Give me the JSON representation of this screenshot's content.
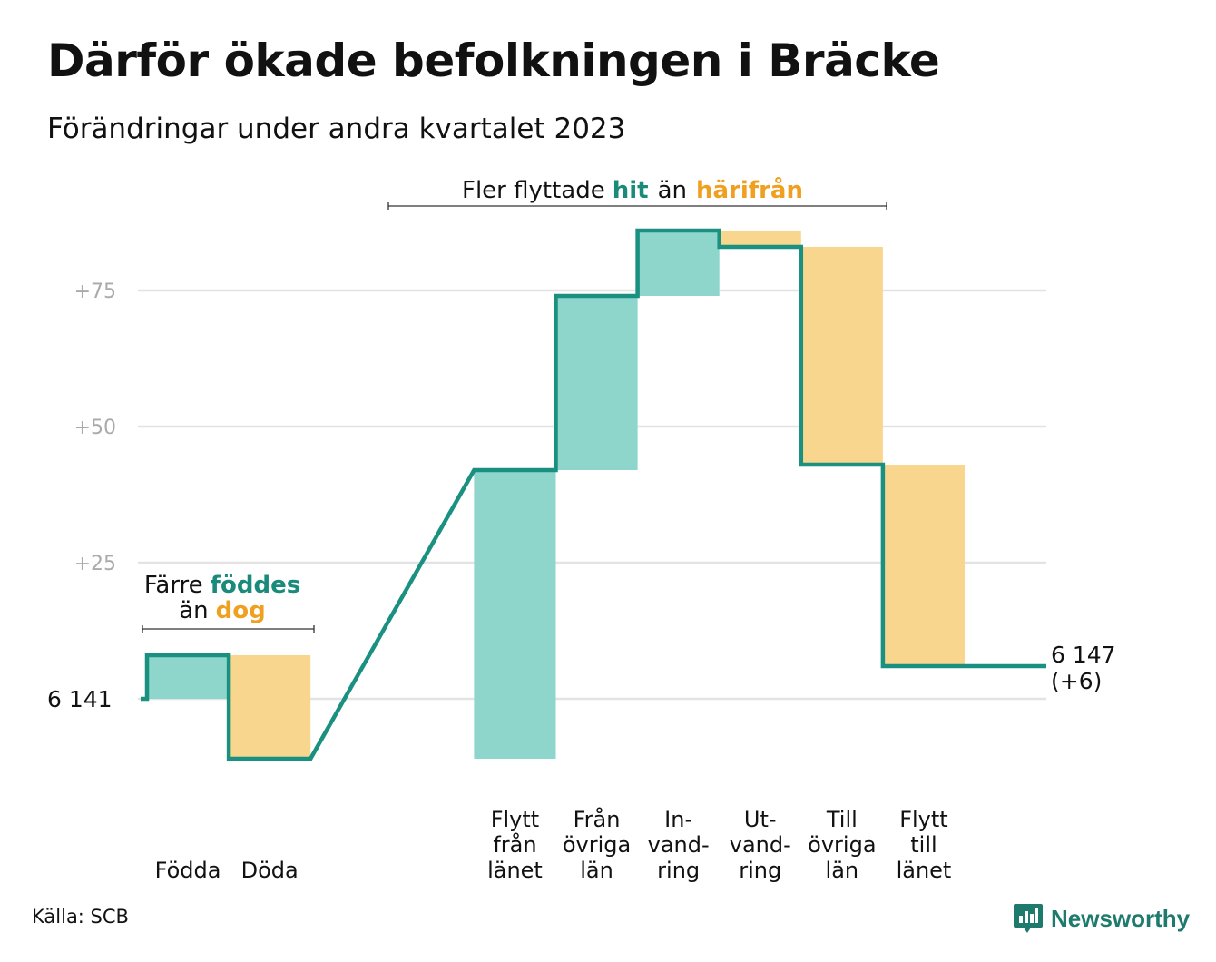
{
  "title": "Därför ökade befolkningen i Bräcke",
  "subtitle": "Förändringar under andra kvartalet 2023",
  "source": "Källa: SCB",
  "logo": {
    "text": "Newsworthy",
    "icon": "newsworthy-chart-bubble-icon"
  },
  "annotations": {
    "births_deaths": {
      "line1_plain": "Färre",
      "line1_highlight": "föddes",
      "line2_plain": "än",
      "line2_highlight": "dog"
    },
    "migration": {
      "plain1": "Fler flyttade",
      "highlight1": "hit",
      "plain2": "än",
      "highlight2": "härifrån"
    }
  },
  "colors": {
    "increase_fill": "#8ed5cc",
    "decrease_fill": "#f9d68e",
    "step_line": "#1a9080",
    "teal_text": "#1a8b7b",
    "orange_text": "#f0a020",
    "grid": "#e3e3e3",
    "tick_label": "#aaaaaa"
  },
  "chart_data": {
    "type": "waterfall",
    "title": "Därför ökade befolkningen i Bräcke",
    "subtitle": "Förändringar under andra kvartalet 2023",
    "start_value": 6141,
    "start_label": "6  141",
    "end_value": 6147,
    "end_label_line1": "6 147",
    "end_label_line2": "(+6)",
    "y_ticks": [
      {
        "offset": 25,
        "label": "+25"
      },
      {
        "offset": 50,
        "label": "+50"
      },
      {
        "offset": 75,
        "label": "+75"
      }
    ],
    "ylim_offset": [
      -14,
      90
    ],
    "grid": true,
    "steps": [
      {
        "label_lines": [
          "Födda"
        ],
        "change": 8
      },
      {
        "label_lines": [
          "Döda"
        ],
        "change": -19
      },
      {
        "label_lines": [
          "Flytt",
          "från",
          "länet"
        ],
        "change": 53
      },
      {
        "label_lines": [
          "Från",
          "övriga",
          "län"
        ],
        "change": 32
      },
      {
        "label_lines": [
          "In-",
          "vand-",
          "ring"
        ],
        "change": 12
      },
      {
        "label_lines": [
          "Ut-",
          "vand-",
          "ring"
        ],
        "change": -3
      },
      {
        "label_lines": [
          "Till",
          "övriga",
          "län"
        ],
        "change": -40
      },
      {
        "label_lines": [
          "Flytt",
          "till",
          "länet"
        ],
        "change": -37
      }
    ],
    "gap_after_step": 2
  }
}
